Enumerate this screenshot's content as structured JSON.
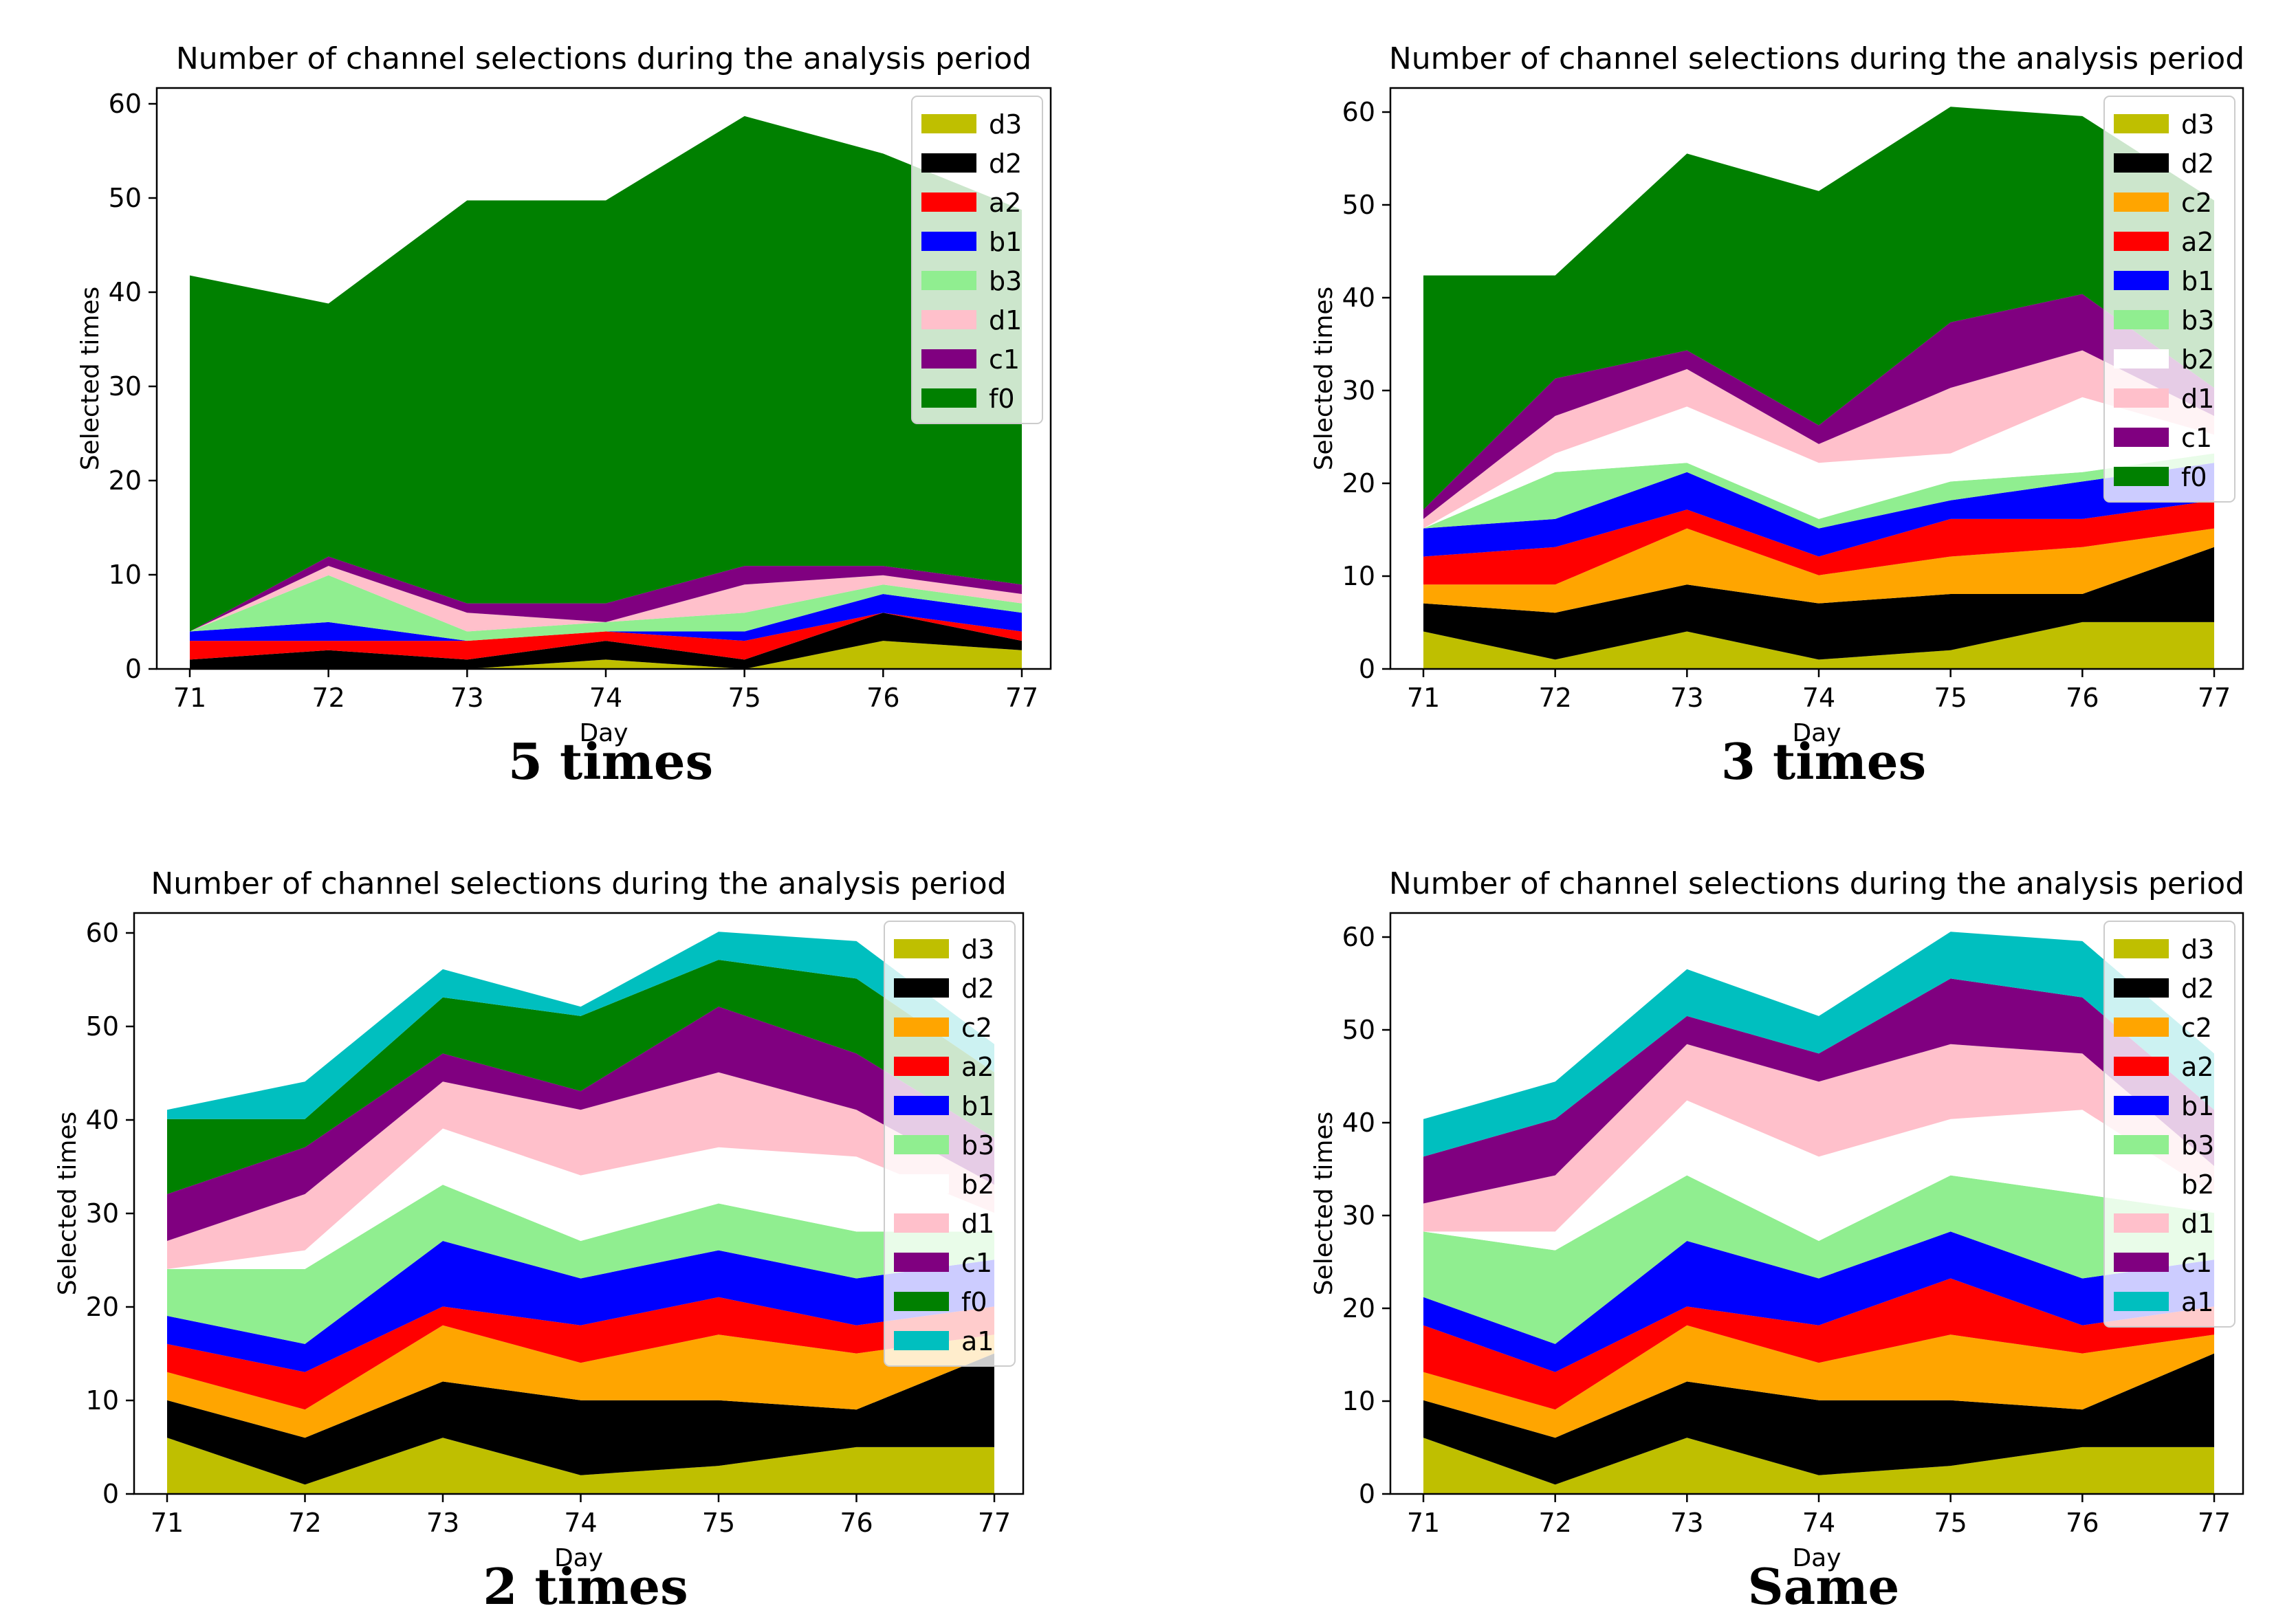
{
  "colors": {
    "d3": "#bfbf00",
    "d2": "#000000",
    "c2": "#ffa500",
    "a2": "#ff0000",
    "b1": "#0000ff",
    "b3": "#90ee90",
    "b2": "#ffffff",
    "d1": "#ffc0cb",
    "c1": "#800080",
    "f0": "#008000",
    "a1": "#00bfbf"
  },
  "chart_data": [
    {
      "type": "area",
      "stacked": true,
      "caption": "5 times",
      "title": "Number of channel selections during the analysis period",
      "xlabel": "Day",
      "ylabel": "Selected times",
      "x": [
        71,
        72,
        73,
        74,
        75,
        76,
        77
      ],
      "x_ticks": [
        "71",
        "72",
        "73",
        "74",
        "75",
        "76",
        "77"
      ],
      "y_ticks": [
        "0",
        "10",
        "20",
        "30",
        "40",
        "50",
        "60"
      ],
      "ylim": [
        0,
        62
      ],
      "legend_position": "top-right",
      "series": [
        {
          "name": "d3",
          "values": [
            0,
            0,
            0,
            1,
            0,
            3,
            2
          ]
        },
        {
          "name": "d2",
          "values": [
            1,
            2,
            1,
            2,
            1,
            3,
            1
          ]
        },
        {
          "name": "a2",
          "values": [
            2,
            1,
            2,
            1,
            2,
            0,
            1
          ]
        },
        {
          "name": "b1",
          "values": [
            1,
            2,
            0,
            0,
            1,
            2,
            2
          ]
        },
        {
          "name": "b3",
          "values": [
            0,
            5,
            1,
            1,
            2,
            1,
            1
          ]
        },
        {
          "name": "d1",
          "values": [
            0,
            1,
            2,
            0,
            3,
            1,
            1
          ]
        },
        {
          "name": "c1",
          "values": [
            0,
            1,
            1,
            2,
            2,
            1,
            1
          ]
        },
        {
          "name": "f0",
          "values": [
            38,
            27,
            43,
            43,
            48,
            44,
            40
          ]
        }
      ]
    },
    {
      "type": "area",
      "stacked": true,
      "caption": "3 times",
      "title": "Number of channel selections during the analysis period",
      "xlabel": "Day",
      "ylabel": "Selected times",
      "x": [
        71,
        72,
        73,
        74,
        75,
        76,
        77
      ],
      "x_ticks": [
        "71",
        "72",
        "73",
        "74",
        "75",
        "76",
        "77"
      ],
      "y_ticks": [
        "0",
        "10",
        "20",
        "30",
        "40",
        "50",
        "60"
      ],
      "ylim": [
        0,
        62
      ],
      "legend_position": "top-right",
      "series": [
        {
          "name": "d3",
          "values": [
            4,
            1,
            4,
            1,
            2,
            5,
            5
          ]
        },
        {
          "name": "d2",
          "values": [
            3,
            5,
            5,
            6,
            6,
            3,
            8
          ]
        },
        {
          "name": "c2",
          "values": [
            2,
            3,
            6,
            3,
            4,
            5,
            2
          ]
        },
        {
          "name": "a2",
          "values": [
            3,
            4,
            2,
            2,
            4,
            3,
            3
          ]
        },
        {
          "name": "b1",
          "values": [
            3,
            3,
            4,
            3,
            2,
            4,
            4
          ]
        },
        {
          "name": "b3",
          "values": [
            0,
            5,
            1,
            1,
            2,
            1,
            1
          ]
        },
        {
          "name": "b2",
          "values": [
            0,
            2,
            6,
            6,
            3,
            8,
            2
          ]
        },
        {
          "name": "d1",
          "values": [
            1,
            4,
            4,
            2,
            7,
            5,
            2
          ]
        },
        {
          "name": "c1",
          "values": [
            1,
            4,
            2,
            2,
            7,
            6,
            3
          ]
        },
        {
          "name": "f0",
          "values": [
            25,
            11,
            21,
            25,
            23,
            19,
            20
          ]
        }
      ]
    },
    {
      "type": "area",
      "stacked": true,
      "caption": "2 times",
      "title": "Number of channel selections during the analysis period",
      "xlabel": "Day",
      "ylabel": "Selected times",
      "x": [
        71,
        72,
        73,
        74,
        75,
        76,
        77
      ],
      "x_ticks": [
        "71",
        "72",
        "73",
        "74",
        "75",
        "76",
        "77"
      ],
      "y_ticks": [
        "0",
        "10",
        "20",
        "30",
        "40",
        "50",
        "60"
      ],
      "ylim": [
        0,
        62
      ],
      "legend_position": "top-right",
      "series": [
        {
          "name": "d3",
          "values": [
            6,
            1,
            6,
            2,
            3,
            5,
            5
          ]
        },
        {
          "name": "d2",
          "values": [
            4,
            5,
            6,
            8,
            7,
            4,
            10
          ]
        },
        {
          "name": "c2",
          "values": [
            3,
            3,
            6,
            4,
            7,
            6,
            2
          ]
        },
        {
          "name": "a2",
          "values": [
            3,
            4,
            2,
            4,
            4,
            3,
            3
          ]
        },
        {
          "name": "b1",
          "values": [
            3,
            3,
            7,
            5,
            5,
            5,
            5
          ]
        },
        {
          "name": "b3",
          "values": [
            5,
            8,
            6,
            4,
            5,
            5,
            3
          ]
        },
        {
          "name": "b2",
          "values": [
            0,
            2,
            6,
            7,
            6,
            8,
            2
          ]
        },
        {
          "name": "d1",
          "values": [
            3,
            6,
            5,
            7,
            8,
            5,
            3
          ]
        },
        {
          "name": "c1",
          "values": [
            5,
            5,
            3,
            2,
            7,
            6,
            5
          ]
        },
        {
          "name": "f0",
          "values": [
            8,
            3,
            6,
            8,
            5,
            8,
            7
          ]
        },
        {
          "name": "a1",
          "values": [
            1,
            4,
            3,
            1,
            3,
            4,
            3
          ]
        }
      ]
    },
    {
      "type": "area",
      "stacked": true,
      "caption": "Same",
      "title": "Number of channel selections during the analysis period",
      "xlabel": "Day",
      "ylabel": "Selected times",
      "x": [
        71,
        72,
        73,
        74,
        75,
        76,
        77
      ],
      "x_ticks": [
        "71",
        "72",
        "73",
        "74",
        "75",
        "76",
        "77"
      ],
      "y_ticks": [
        "0",
        "10",
        "20",
        "30",
        "40",
        "50",
        "60"
      ],
      "ylim": [
        0,
        62
      ],
      "legend_position": "top-right",
      "series": [
        {
          "name": "d3",
          "values": [
            6,
            1,
            6,
            2,
            3,
            5,
            5
          ]
        },
        {
          "name": "d2",
          "values": [
            4,
            5,
            6,
            8,
            7,
            4,
            10
          ]
        },
        {
          "name": "c2",
          "values": [
            3,
            3,
            6,
            4,
            7,
            6,
            2
          ]
        },
        {
          "name": "a2",
          "values": [
            5,
            4,
            2,
            4,
            6,
            3,
            3
          ]
        },
        {
          "name": "b1",
          "values": [
            3,
            3,
            7,
            5,
            5,
            5,
            5
          ]
        },
        {
          "name": "b3",
          "values": [
            7,
            10,
            7,
            4,
            6,
            9,
            5
          ]
        },
        {
          "name": "b2",
          "values": [
            0,
            2,
            8,
            9,
            6,
            9,
            2
          ]
        },
        {
          "name": "d1",
          "values": [
            3,
            6,
            6,
            8,
            8,
            6,
            3
          ]
        },
        {
          "name": "c1",
          "values": [
            5,
            6,
            3,
            3,
            7,
            6,
            6
          ]
        },
        {
          "name": "a1",
          "values": [
            4,
            4,
            5,
            4,
            5,
            6,
            6
          ]
        }
      ]
    }
  ]
}
